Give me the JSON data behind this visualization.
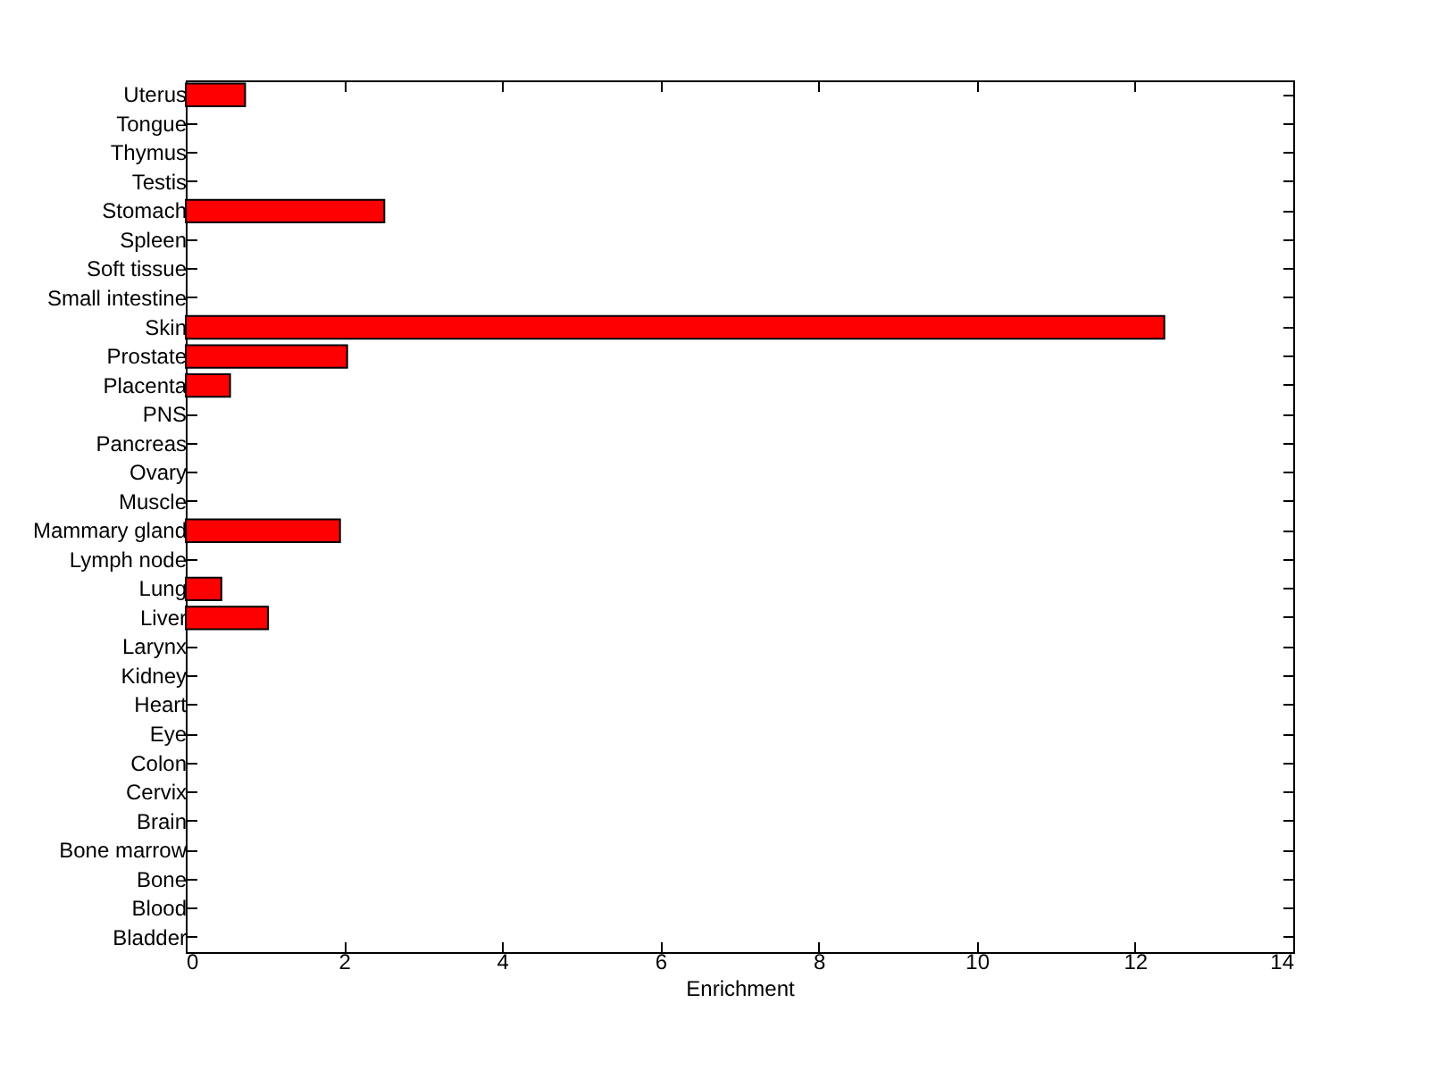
{
  "chart_data": {
    "type": "bar",
    "orientation": "horizontal",
    "xlabel": "Enrichment",
    "categories": [
      "Uterus",
      "Tongue",
      "Thymus",
      "Testis",
      "Stomach",
      "Spleen",
      "Soft tissue",
      "Small intestine",
      "Skin",
      "Prostate",
      "Placenta",
      "PNS",
      "Pancreas",
      "Ovary",
      "Muscle",
      "Mammary gland",
      "Lymph node",
      "Lung",
      "Liver",
      "Larynx",
      "Kidney",
      "Heart",
      "Eye",
      "Colon",
      "Cervix",
      "Brain",
      "Bone marrow",
      "Bone",
      "Blood",
      "Bladder"
    ],
    "values": [
      0.75,
      0,
      0,
      0,
      2.51,
      0,
      0,
      0,
      12.37,
      2.04,
      0.56,
      0,
      0,
      0,
      0,
      1.95,
      0,
      0.45,
      1.04,
      0,
      0,
      0,
      0,
      0,
      0,
      0,
      0,
      0,
      0,
      0
    ],
    "color": "#ff0000",
    "xlim": [
      0,
      14
    ],
    "xticks": [
      0,
      2,
      4,
      6,
      8,
      10,
      12,
      14
    ],
    "grid": false
  }
}
